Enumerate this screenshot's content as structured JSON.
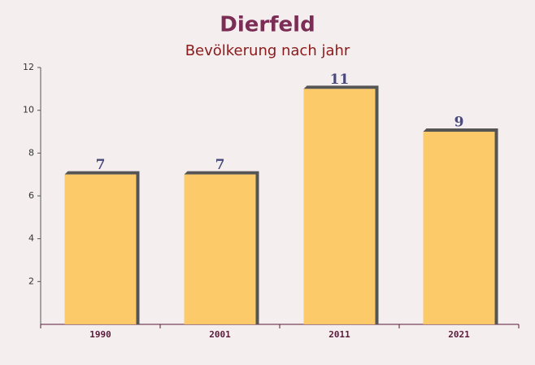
{
  "chart_data": {
    "type": "bar",
    "title": "Dierfeld",
    "subtitle": "Bevölkerung nach jahr",
    "categories": [
      "1990",
      "2001",
      "2011",
      "2021"
    ],
    "values": [
      7,
      7,
      11,
      9
    ],
    "color": "#fdc55a",
    "ylim": [
      0,
      12
    ],
    "yticks": [
      2,
      4,
      6,
      8,
      10,
      12
    ],
    "grid": false
  }
}
